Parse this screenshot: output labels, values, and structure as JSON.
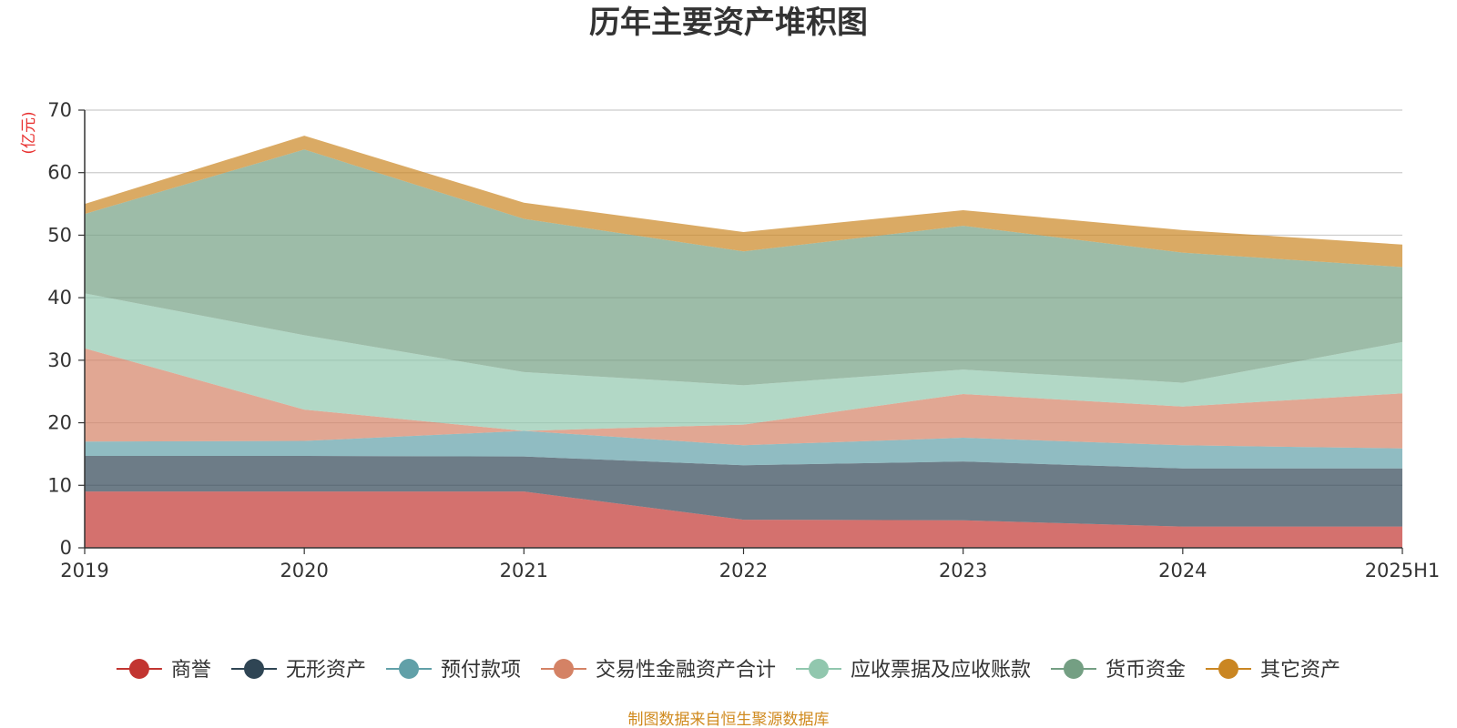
{
  "chart_data": {
    "type": "area",
    "stacked": true,
    "title": "历年主要资产堆积图",
    "ylabel": "(亿元)",
    "xlabel": "",
    "ylim": [
      0,
      70
    ],
    "yticks": [
      0,
      10,
      20,
      30,
      40,
      50,
      60,
      70
    ],
    "categories": [
      "2019",
      "2020",
      "2021",
      "2022",
      "2023",
      "2024",
      "2025H1"
    ],
    "grid": true,
    "legend_position": "bottom",
    "series": [
      {
        "name": "商誉",
        "color": "#c23531",
        "values": [
          9.0,
          9.0,
          9.0,
          4.5,
          4.4,
          3.4,
          3.4
        ]
      },
      {
        "name": "无形资产",
        "color": "#2f4554",
        "values": [
          5.7,
          5.7,
          5.6,
          8.7,
          9.4,
          9.3,
          9.3
        ]
      },
      {
        "name": "预付款项",
        "color": "#61a0a8",
        "values": [
          2.3,
          2.4,
          4.1,
          3.2,
          3.8,
          3.7,
          3.2
        ]
      },
      {
        "name": "交易性金融资产合计",
        "color": "#d48265",
        "values": [
          14.9,
          5.0,
          0.0,
          3.3,
          7.0,
          6.2,
          8.8
        ]
      },
      {
        "name": "应收票据及应收账款",
        "color": "#91c7ae",
        "values": [
          8.8,
          11.9,
          9.4,
          6.3,
          3.9,
          3.8,
          8.2
        ]
      },
      {
        "name": "货币资金",
        "color": "#749f83",
        "values": [
          12.7,
          29.7,
          24.5,
          21.4,
          23.0,
          20.8,
          12.0
        ]
      },
      {
        "name": "其它资产",
        "color": "#ca8622",
        "values": [
          1.6,
          2.2,
          2.6,
          3.1,
          2.5,
          3.6,
          3.6
        ]
      }
    ]
  },
  "footer": {
    "source": "制图数据来自恒生聚源数据库"
  }
}
